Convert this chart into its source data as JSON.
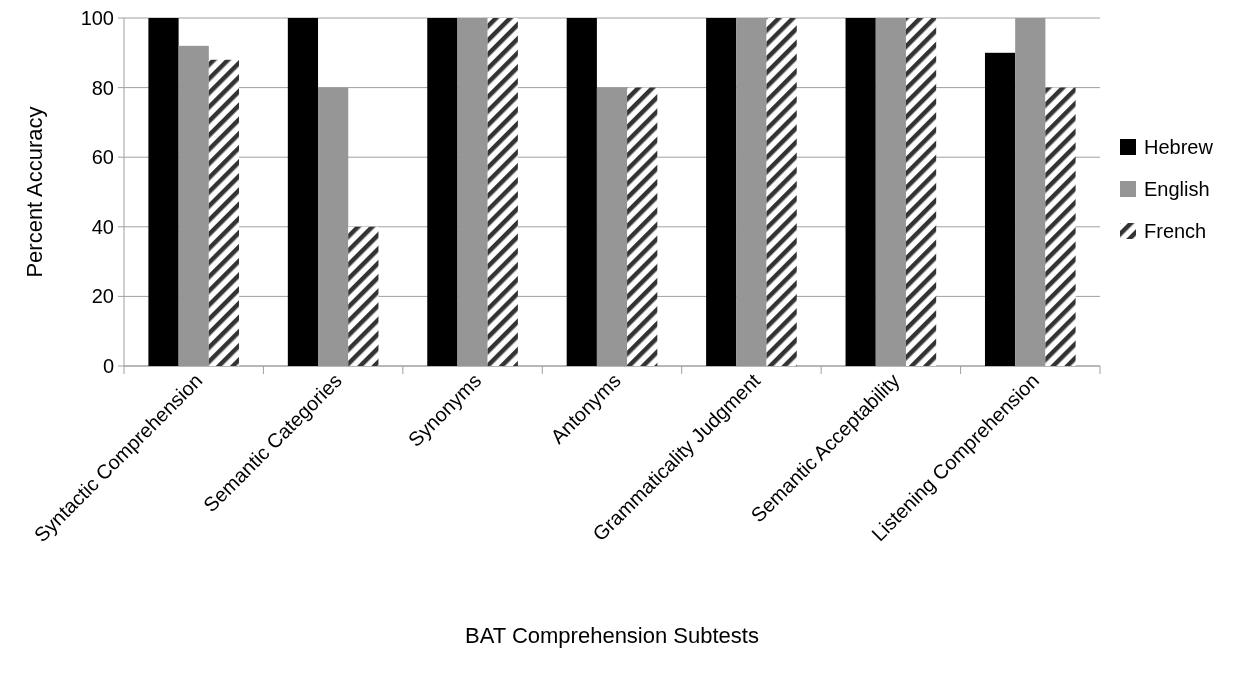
{
  "chart_data": {
    "type": "bar",
    "xlabel": "BAT Comprehension Subtests",
    "ylabel": "Percent Accuracy",
    "categories": [
      "Syntactic Comprehension",
      "Semantic Categories",
      "Synonyms",
      "Antonyms",
      "Grammaticality Judgment",
      "Semantic Acceptability",
      "Listening Comprehension"
    ],
    "series": [
      {
        "name": "Hebrew",
        "color": "#000000",
        "values": [
          100,
          100,
          100,
          100,
          100,
          100,
          90
        ]
      },
      {
        "name": "English",
        "color": "#969696",
        "values": [
          92,
          80,
          100,
          80,
          100,
          100,
          100
        ]
      },
      {
        "name": "French",
        "color": "#333333",
        "values": [
          88,
          40,
          100,
          80,
          100,
          100,
          80
        ]
      }
    ],
    "ylim": [
      0,
      100
    ],
    "yticks": [
      0,
      20,
      40,
      60,
      80,
      100
    ],
    "grid": "y",
    "legend": "right"
  }
}
